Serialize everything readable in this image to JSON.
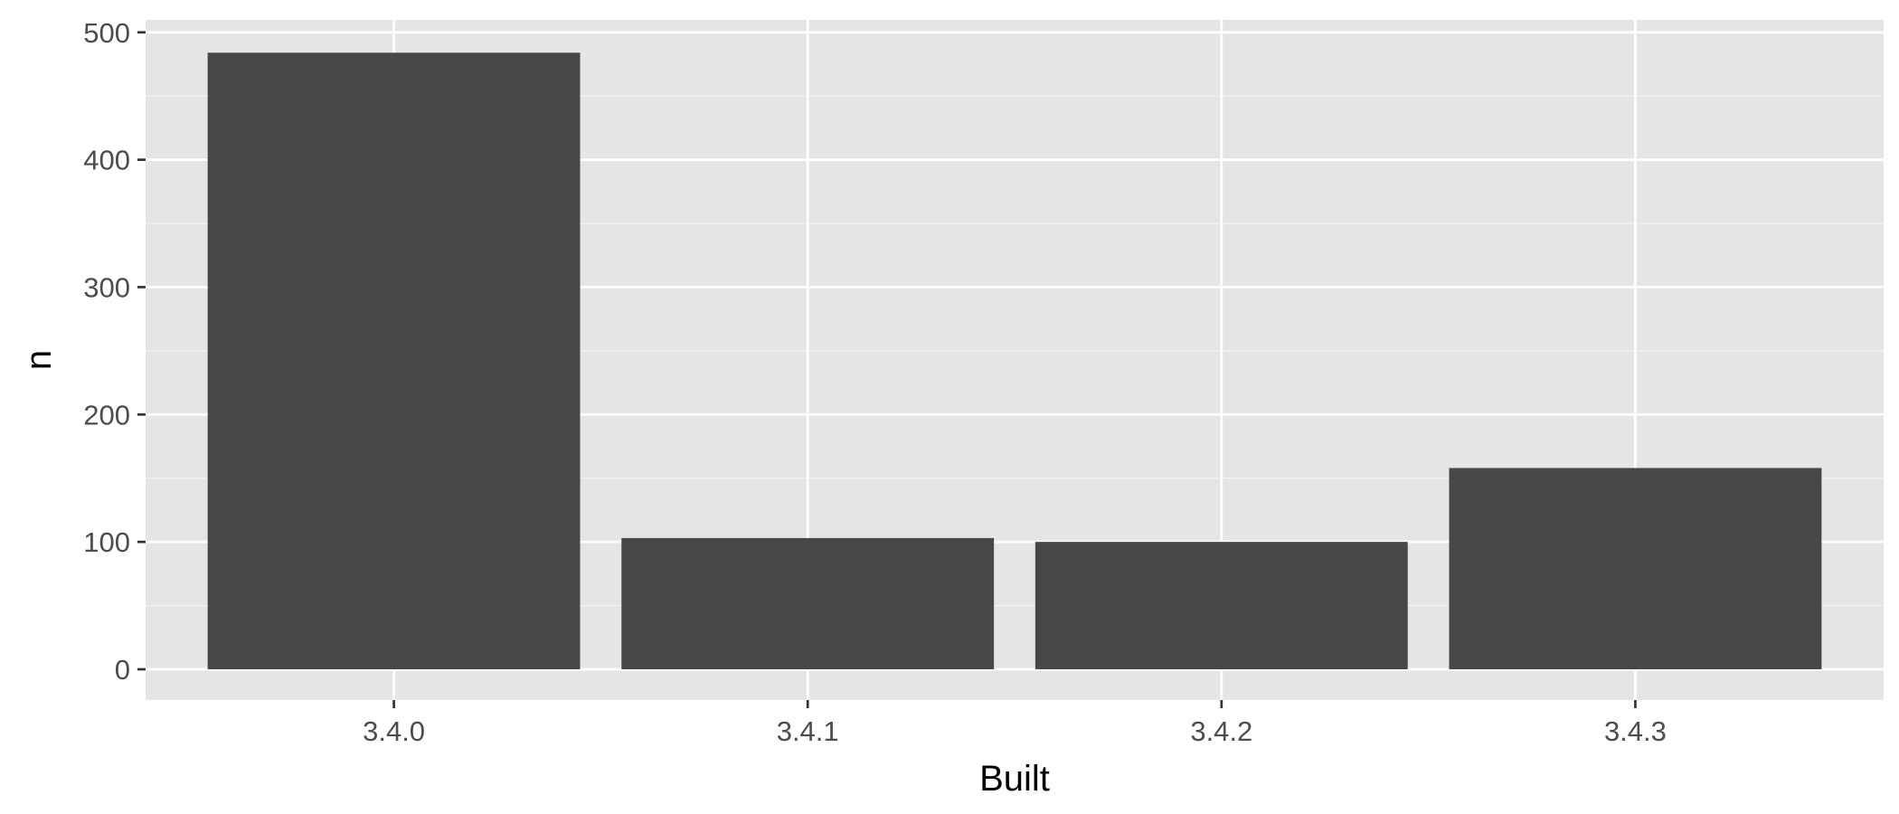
{
  "chart_data": {
    "type": "bar",
    "categories": [
      "3.4.0",
      "3.4.1",
      "3.4.2",
      "3.4.3"
    ],
    "values": [
      484,
      103,
      100,
      158
    ],
    "title": "",
    "xlabel": "Built",
    "ylabel": "n",
    "ylim": [
      0,
      524
    ],
    "yticks": [
      0,
      100,
      200,
      300,
      400,
      500
    ],
    "ytick_labels": [
      "0",
      "100",
      "200",
      "300",
      "400",
      "500"
    ],
    "grid": true,
    "legend": "none",
    "colors": {
      "panel_background": "#E5E5E5",
      "bar_fill": "#474747",
      "grid_major": "#FFFFFF",
      "grid_minor": "#F2F2F2",
      "tick_text": "#4D4D4D",
      "axis_title_text": "#000000",
      "tick_mark": "#333333"
    }
  }
}
